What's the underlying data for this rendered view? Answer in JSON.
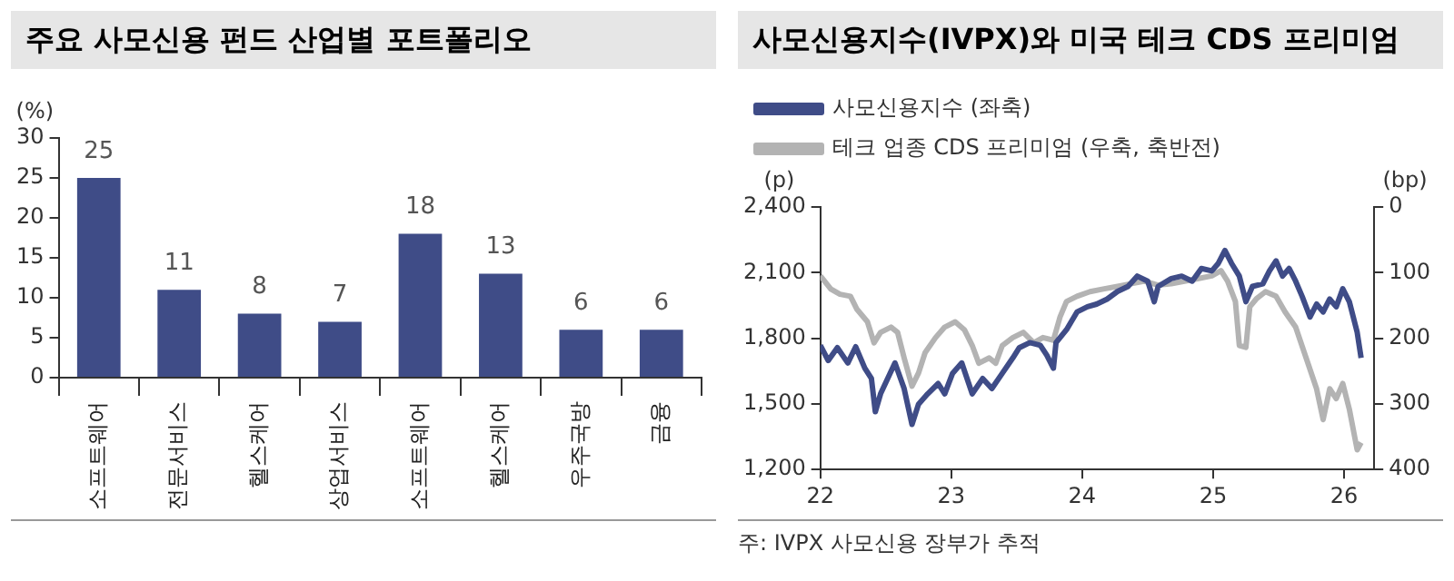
{
  "chart_data": [
    {
      "type": "bar",
      "title": "주요 사모신용 펀드 산업별 포트폴리오",
      "ylabel": "(%)",
      "categories": [
        "소프트웨어",
        "전문서비스",
        "헬스케어",
        "상업서비스",
        "소프트웨어",
        "헬스케어",
        "우주국방",
        "금융"
      ],
      "values": [
        25,
        11,
        8,
        7,
        18,
        13,
        6,
        6
      ],
      "color": "#3f4c87",
      "ylim": [
        0,
        30
      ],
      "yticks": [
        0,
        5,
        10,
        15,
        20,
        25,
        30
      ],
      "data_labels": true,
      "grid": false
    },
    {
      "type": "line",
      "title": "사모신용지수(IVPX)와 미국 테크 CDS 프리미엄",
      "ylabel": "(p)",
      "y2label": "(bp)",
      "xlim": [
        22,
        26.23
      ],
      "xticks": [
        22,
        23,
        24,
        25,
        26
      ],
      "ylim": [
        1200,
        2400
      ],
      "yticks": [
        {
          "value": 1200,
          "label": "1,200"
        },
        {
          "value": 1500,
          "label": "1,500"
        },
        {
          "value": 1800,
          "label": "1,800"
        },
        {
          "value": 2100,
          "label": "2,100"
        },
        {
          "value": 2400,
          "label": "2,400"
        }
      ],
      "y2lim": [
        400,
        0
      ],
      "y2ticks": [
        0,
        100,
        200,
        300,
        400
      ],
      "grid": false,
      "legend": "top left",
      "annotations": [
        "주: IVPX 사모신용 장부가 추적"
      ],
      "series": [
        {
          "name": "사모신용지수 (좌축)",
          "color": "#3f4c87",
          "x": [
            22.0,
            22.06,
            22.13,
            22.21,
            22.27,
            22.34,
            22.39,
            22.42,
            22.46,
            22.57,
            22.64,
            22.7,
            22.75,
            22.82,
            22.9,
            22.95,
            23.01,
            23.08,
            23.16,
            23.24,
            23.31,
            23.39,
            23.47,
            23.52,
            23.6,
            23.68,
            23.73,
            23.78,
            23.8,
            23.88,
            23.96,
            24.04,
            24.11,
            24.19,
            24.27,
            24.35,
            24.42,
            24.5,
            24.55,
            24.58,
            24.68,
            24.76,
            24.84,
            24.91,
            24.99,
            25.04,
            25.09,
            25.14,
            25.2,
            25.25,
            25.3,
            25.38,
            25.43,
            25.48,
            25.53,
            25.58,
            25.63,
            25.68,
            25.74,
            25.79,
            25.84,
            25.89,
            25.94,
            25.99,
            26.04,
            26.1,
            26.13
          ],
          "values": [
            1768,
            1698,
            1757,
            1687,
            1761,
            1663,
            1616,
            1464,
            1546,
            1687,
            1570,
            1406,
            1499,
            1546,
            1593,
            1546,
            1640,
            1687,
            1546,
            1616,
            1570,
            1640,
            1710,
            1757,
            1780,
            1768,
            1722,
            1663,
            1780,
            1839,
            1920,
            1944,
            1956,
            1979,
            2014,
            2037,
            2084,
            2061,
            1967,
            2037,
            2073,
            2084,
            2061,
            2119,
            2108,
            2143,
            2201,
            2143,
            2084,
            1967,
            2037,
            2049,
            2108,
            2154,
            2084,
            2119,
            2061,
            1991,
            1897,
            1956,
            1920,
            1979,
            1944,
            2026,
            1967,
            1827,
            1710
          ]
        },
        {
          "name": "테크 업종 CDS 프리미엄 (우축, 축반전)",
          "color": "#b3b3b3",
          "axis": "y2",
          "x": [
            22.0,
            22.08,
            22.15,
            22.23,
            22.28,
            22.36,
            22.41,
            22.46,
            22.54,
            22.59,
            22.64,
            22.7,
            22.75,
            22.8,
            22.88,
            22.95,
            23.03,
            23.1,
            23.16,
            23.21,
            23.29,
            23.34,
            23.39,
            23.47,
            23.55,
            23.63,
            23.7,
            23.78,
            23.83,
            23.88,
            23.96,
            24.06,
            24.16,
            24.27,
            24.37,
            24.47,
            24.58,
            24.68,
            24.78,
            24.89,
            24.99,
            25.06,
            25.11,
            25.17,
            25.2,
            25.25,
            25.28,
            25.33,
            25.4,
            25.48,
            25.55,
            25.63,
            25.71,
            25.79,
            25.84,
            25.89,
            25.94,
            25.99,
            26.04,
            26.1,
            26.13
          ],
          "values": [
            105,
            125,
            133,
            136,
            156,
            175,
            207,
            191,
            183,
            191,
            230,
            273,
            253,
            222,
            199,
            183,
            175,
            187,
            211,
            238,
            230,
            238,
            211,
            199,
            191,
            207,
            199,
            203,
            168,
            144,
            136,
            129,
            125,
            121,
            117,
            113,
            119,
            117,
            113,
            109,
            105,
            97,
            113,
            144,
            211,
            214,
            152,
            140,
            129,
            136,
            160,
            183,
            230,
            277,
            324,
            277,
            292,
            269,
            308,
            370,
            359
          ]
        }
      ]
    }
  ]
}
